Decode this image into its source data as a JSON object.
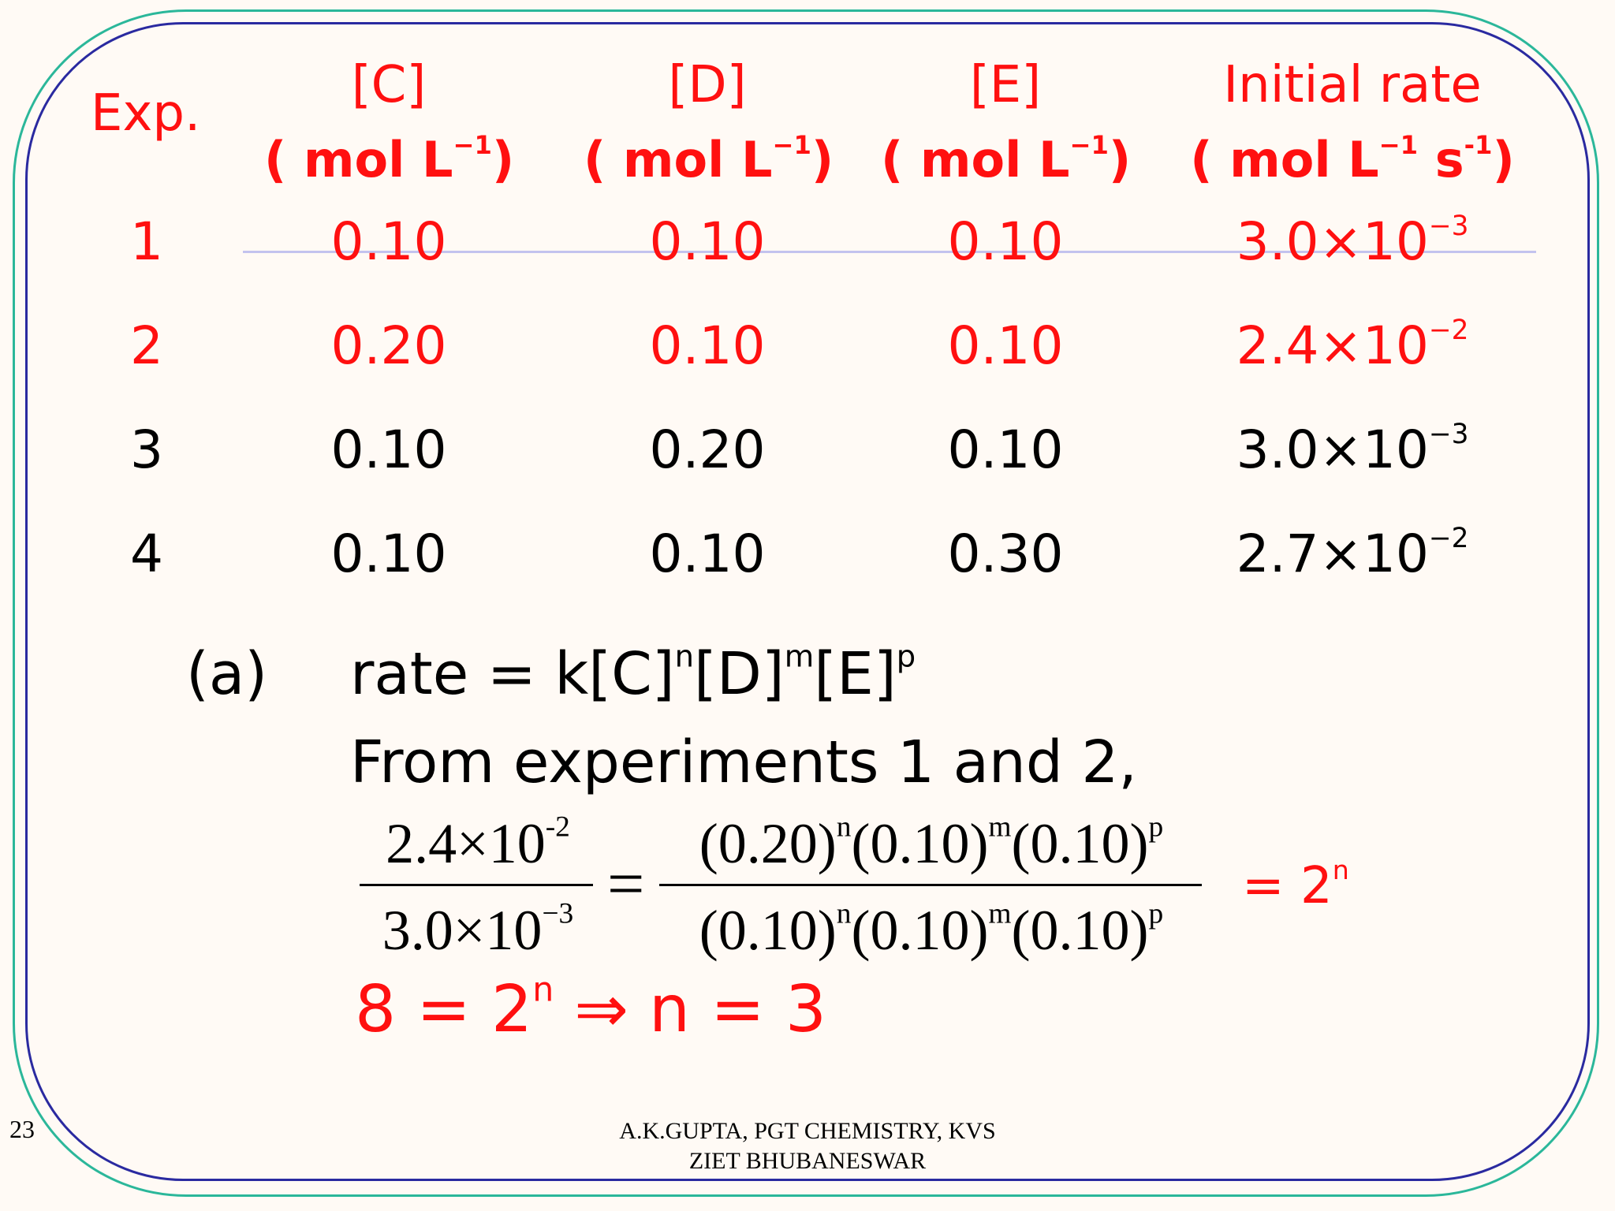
{
  "table": {
    "headers": {
      "exp": "Exp.",
      "c": "[C]",
      "d": "[D]",
      "e": "[E]",
      "rate": "Initial rate"
    },
    "units": {
      "c": {
        "base": "( mol L",
        "exp": "−1",
        "tail": ")"
      },
      "d": {
        "base": "( mol L",
        "exp": "−1",
        "tail": ")"
      },
      "e": {
        "base": "( mol L",
        "exp": "−1",
        "tail": ")"
      },
      "rate": {
        "base": "( mol L",
        "exp1": "−1",
        "mid": " s",
        "exp2": "-1",
        "tail": ")"
      }
    },
    "rows": [
      {
        "exp": "1",
        "c": "0.10",
        "d": "0.10",
        "e": "0.10",
        "rate_base": "3.0×10",
        "rate_exp": "−3"
      },
      {
        "exp": "2",
        "c": "0.20",
        "d": "0.10",
        "e": "0.10",
        "rate_base": "2.4×10",
        "rate_exp": "−2"
      },
      {
        "exp": "3",
        "c": "0.10",
        "d": "0.20",
        "e": "0.10",
        "rate_base": "3.0×10",
        "rate_exp": "−3"
      },
      {
        "exp": "4",
        "c": "0.10",
        "d": "0.10",
        "e": "0.30",
        "rate_base": "2.7×10",
        "rate_exp": "−2"
      }
    ]
  },
  "solution": {
    "part_label": "(a)",
    "rate_law": {
      "lhs": "rate = k[C]",
      "n": "n",
      "d": "[D]",
      "m": "m",
      "e": "[E]",
      "p": "p"
    },
    "intro": "From experiments 1 and 2,",
    "left_fraction": {
      "num_base": "2.4×10",
      "num_exp": "-2",
      "den_base": "3.0×10",
      "den_exp": "−3"
    },
    "equals": "=",
    "right_fraction": {
      "num": {
        "t1": "(0.20)",
        "e1": "n",
        "t2": "(0.10)",
        "e2": "m",
        "t3": "(0.10)",
        "e3": "p"
      },
      "den": {
        "t1": "(0.10)",
        "e1": "n",
        "t2": "(0.10)",
        "e2": "m",
        "t3": "(0.10)",
        "e3": "p"
      }
    },
    "result": {
      "base": "= 2",
      "exp": "n"
    },
    "conclusion": {
      "lhs": "8 = 2",
      "exp": "n",
      "rhs": " ⇒ n = 3"
    }
  },
  "footer": {
    "line1": "A.K.GUPTA, PGT CHEMISTRY, KVS",
    "line2": "ZIET BHUBANESWAR"
  },
  "slide_number": "23",
  "colors": {
    "highlight": "#ff1010",
    "text": "#000000",
    "frame_outer": "#2bb79a",
    "frame_inner": "#2a2aa0"
  }
}
